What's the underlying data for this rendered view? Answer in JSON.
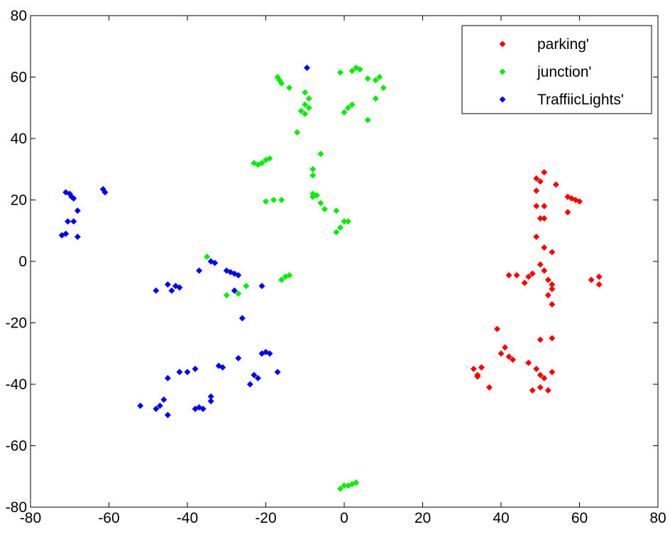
{
  "chart_data": {
    "type": "scatter",
    "title": "",
    "xlabel": "",
    "ylabel": "",
    "xlim": [
      -80,
      80
    ],
    "ylim": [
      -80,
      80
    ],
    "xticks": [
      -80,
      -60,
      -40,
      -20,
      0,
      20,
      40,
      60,
      80
    ],
    "yticks": [
      -80,
      -60,
      -40,
      -20,
      0,
      20,
      40,
      60,
      80
    ],
    "grid": false,
    "legend_position": "top-right",
    "marker": "diamond",
    "series": [
      {
        "name": "parking'",
        "color": "#ff0000",
        "points": [
          [
            49,
            27
          ],
          [
            51,
            29
          ],
          [
            50,
            26
          ],
          [
            54,
            25
          ],
          [
            49,
            23
          ],
          [
            49,
            18
          ],
          [
            51,
            18
          ],
          [
            57,
            21
          ],
          [
            58,
            20.5
          ],
          [
            59,
            20
          ],
          [
            60,
            19.5
          ],
          [
            57,
            16
          ],
          [
            50,
            14
          ],
          [
            51,
            14
          ],
          [
            49,
            8
          ],
          [
            51,
            4.5
          ],
          [
            53,
            3
          ],
          [
            50,
            -1
          ],
          [
            51,
            -3
          ],
          [
            48,
            -4
          ],
          [
            47,
            -5
          ],
          [
            46,
            -7
          ],
          [
            42,
            -4.5
          ],
          [
            44,
            -4.5
          ],
          [
            52,
            -6
          ],
          [
            53,
            -7.5
          ],
          [
            53,
            -9
          ],
          [
            52,
            -11
          ],
          [
            53,
            -14
          ],
          [
            63,
            -6
          ],
          [
            65,
            -5
          ],
          [
            65,
            -7.5
          ],
          [
            39,
            -22
          ],
          [
            41,
            -28
          ],
          [
            40,
            -30
          ],
          [
            42,
            -31
          ],
          [
            43,
            -32
          ],
          [
            47,
            -33
          ],
          [
            49,
            -35
          ],
          [
            50,
            -25.5
          ],
          [
            53,
            -25
          ],
          [
            50,
            -37
          ],
          [
            51,
            -38
          ],
          [
            53,
            -36
          ],
          [
            33,
            -35
          ],
          [
            34,
            -37
          ],
          [
            35,
            -34.5
          ],
          [
            34,
            -37.5
          ],
          [
            37,
            -41
          ],
          [
            48,
            -42
          ],
          [
            50,
            -41
          ],
          [
            52,
            -42
          ]
        ]
      },
      {
        "name": "junction'",
        "color": "#00ee00",
        "points": [
          [
            -17,
            60
          ],
          [
            -16.5,
            59
          ],
          [
            -16,
            58
          ],
          [
            -14,
            56.5
          ],
          [
            -11,
            49
          ],
          [
            -10,
            48
          ],
          [
            -10,
            51
          ],
          [
            -9,
            53
          ],
          [
            -9,
            50
          ],
          [
            -10,
            55
          ],
          [
            -12,
            42
          ],
          [
            -1,
            61.5
          ],
          [
            2,
            62
          ],
          [
            3,
            63
          ],
          [
            4,
            62.5
          ],
          [
            6,
            59.5
          ],
          [
            8,
            59
          ],
          [
            9,
            60
          ],
          [
            10,
            56.5
          ],
          [
            8,
            53
          ],
          [
            2,
            51
          ],
          [
            1,
            50
          ],
          [
            0,
            48.5
          ],
          [
            6,
            46
          ],
          [
            -23,
            32
          ],
          [
            -22,
            31.5
          ],
          [
            -21,
            32
          ],
          [
            -20,
            33
          ],
          [
            -19,
            33.5
          ],
          [
            -6,
            35
          ],
          [
            -8,
            30
          ],
          [
            -8,
            28
          ],
          [
            -8,
            22
          ],
          [
            -7,
            21.5
          ],
          [
            -8,
            21
          ],
          [
            -6,
            19
          ],
          [
            -5,
            17
          ],
          [
            -18,
            20
          ],
          [
            -16,
            20
          ],
          [
            -20,
            19.5
          ],
          [
            -2,
            16.5
          ],
          [
            0,
            13
          ],
          [
            1,
            13
          ],
          [
            -2,
            9.5
          ],
          [
            -1,
            11
          ],
          [
            -35,
            1.5
          ],
          [
            -34,
            0
          ],
          [
            -15,
            -5
          ],
          [
            -14,
            -4.5
          ],
          [
            -16,
            -6
          ],
          [
            -25,
            -8
          ],
          [
            -30,
            -11
          ],
          [
            -27,
            -10.5
          ],
          [
            -1,
            -74
          ],
          [
            0,
            -73
          ],
          [
            1,
            -73
          ],
          [
            2,
            -72.5
          ],
          [
            3,
            -72
          ]
        ]
      },
      {
        "name": "TraffiicLights'",
        "color": "#0000ff",
        "points": [
          [
            -9.5,
            63
          ],
          [
            -71,
            22.5
          ],
          [
            -70,
            22
          ],
          [
            -69.5,
            21
          ],
          [
            -69,
            20.5
          ],
          [
            -68,
            16.5
          ],
          [
            -70.5,
            13
          ],
          [
            -69,
            13
          ],
          [
            -71,
            9
          ],
          [
            -72,
            8.5
          ],
          [
            -68,
            8
          ],
          [
            -61.5,
            23.5
          ],
          [
            -61,
            22.5
          ],
          [
            -37,
            -3
          ],
          [
            -34,
            0
          ],
          [
            -33,
            -0.5
          ],
          [
            -30,
            -3
          ],
          [
            -28,
            -4
          ],
          [
            -27,
            -4.5
          ],
          [
            -29,
            -3.5
          ],
          [
            -26,
            -18.5
          ],
          [
            -28,
            -9.5
          ],
          [
            -21,
            -8
          ],
          [
            -48,
            -9.5
          ],
          [
            -45,
            -7.5
          ],
          [
            -44,
            -9.5
          ],
          [
            -43,
            -8
          ],
          [
            -42,
            -8.5
          ],
          [
            -21,
            -30
          ],
          [
            -20,
            -29.5
          ],
          [
            -19,
            -30
          ],
          [
            -22,
            -38
          ],
          [
            -24,
            -40
          ],
          [
            -27,
            -31.5
          ],
          [
            -23,
            -37
          ],
          [
            -31,
            -34.5
          ],
          [
            -32,
            -34
          ],
          [
            -17,
            -36
          ],
          [
            -38,
            -35
          ],
          [
            -42,
            -36
          ],
          [
            -45,
            -38
          ],
          [
            -40,
            -36
          ],
          [
            -46,
            -45
          ],
          [
            -47,
            -47
          ],
          [
            -45,
            -50
          ],
          [
            -48,
            -48
          ],
          [
            -52,
            -47
          ],
          [
            -36,
            -48
          ],
          [
            -37,
            -47.5
          ],
          [
            -34,
            -44
          ],
          [
            -34,
            -45.5
          ],
          [
            -38,
            -48
          ]
        ]
      }
    ]
  }
}
